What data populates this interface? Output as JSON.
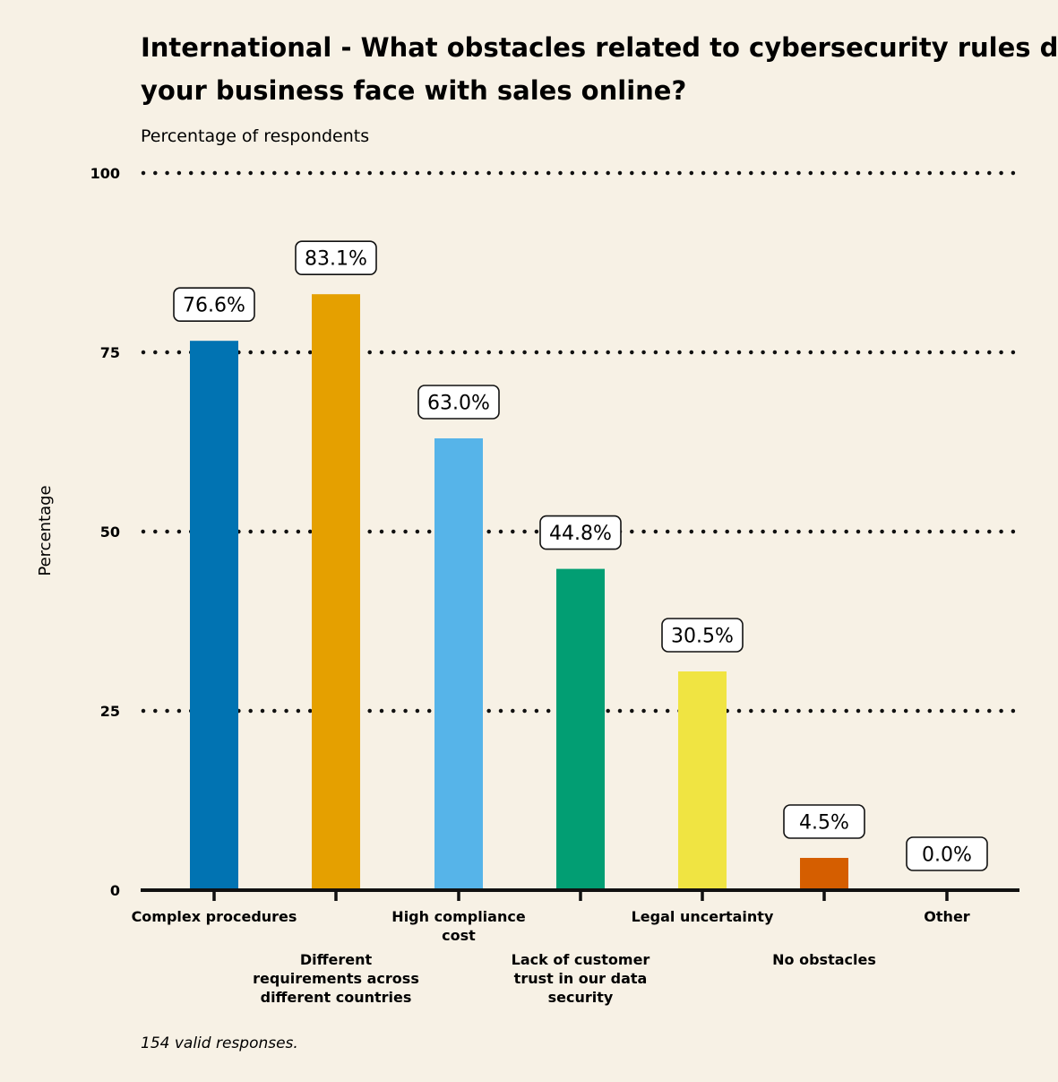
{
  "chart_data": {
    "type": "bar",
    "title": "International - What obstacles related to cybersecurity rules does your business face with sales online?",
    "title_lines": [
      "International - What obstacles related to cybersecurity rules does",
      "your business face with sales online?"
    ],
    "subtitle": "Percentage of respondents",
    "ylabel": "Percentage",
    "caption": "154 valid responses.",
    "ylim": [
      0,
      100
    ],
    "yticks": [
      0,
      25,
      50,
      75,
      100
    ],
    "grid": "dotted horizontal",
    "categories": [
      "Complex procedures",
      "Different requirements across different countries",
      "High compliance cost",
      "Lack of customer trust in our data security",
      "Legal uncertainty",
      "No obstacles",
      "Other"
    ],
    "category_label_lines": [
      [
        "Complex procedures"
      ],
      [
        "Different",
        "requirements across",
        "different countries"
      ],
      [
        "High compliance",
        "cost"
      ],
      [
        "Lack of customer",
        "trust in our data",
        "security"
      ],
      [
        "Legal uncertainty"
      ],
      [
        "No obstacles"
      ],
      [
        "Other"
      ]
    ],
    "values": [
      76.6,
      83.1,
      63.0,
      44.8,
      30.5,
      4.5,
      0.0
    ],
    "data_labels": [
      "76.6%",
      "83.1%",
      "63.0%",
      "44.8%",
      "30.5%",
      "4.5%",
      "0.0%"
    ],
    "colors": [
      "#0173b2",
      "#e5a000",
      "#56b4e9",
      "#029e73",
      "#f0e442",
      "#d55e00",
      "#cc78bc"
    ]
  }
}
